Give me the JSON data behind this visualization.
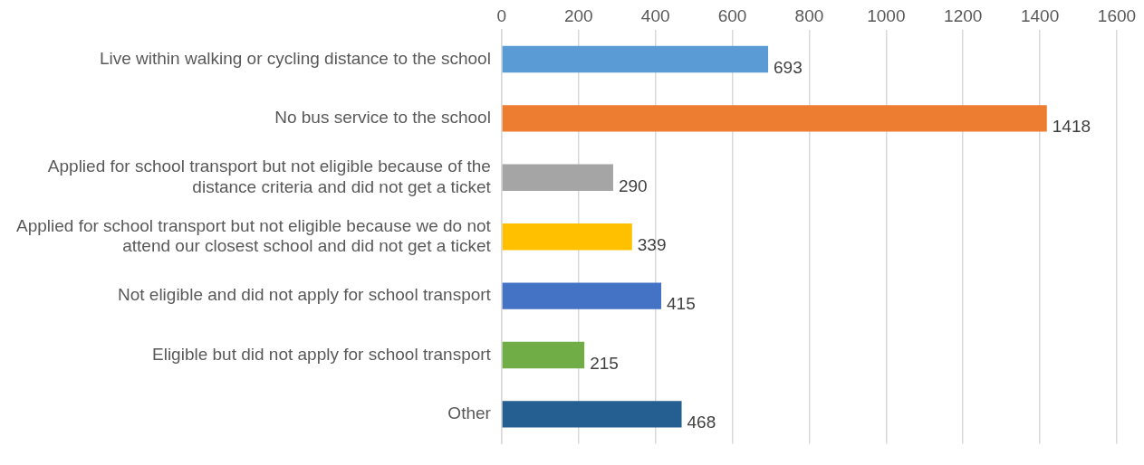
{
  "chart_data": {
    "type": "bar",
    "orientation": "horizontal",
    "categories": [
      "Live within walking or cycling distance to the school",
      "No bus service to the school",
      "Applied for school transport but not eligible because of the distance criteria and did not get a ticket",
      "Applied for school transport but not eligible because we do not attend our closest school and did not get a ticket",
      "Not eligible and did not apply for school transport",
      "Eligible but did not apply for school transport",
      "Other"
    ],
    "values": [
      693,
      1418,
      290,
      339,
      415,
      215,
      468
    ],
    "colors": [
      "#5b9bd5",
      "#ed7d31",
      "#a5a5a5",
      "#ffc000",
      "#4472c4",
      "#70ad47",
      "#255e91"
    ],
    "xlim": [
      0,
      1600
    ],
    "xticks": [
      0,
      200,
      400,
      600,
      800,
      1000,
      1200,
      1400,
      1600
    ],
    "grid": "x",
    "data_labels": true
  }
}
